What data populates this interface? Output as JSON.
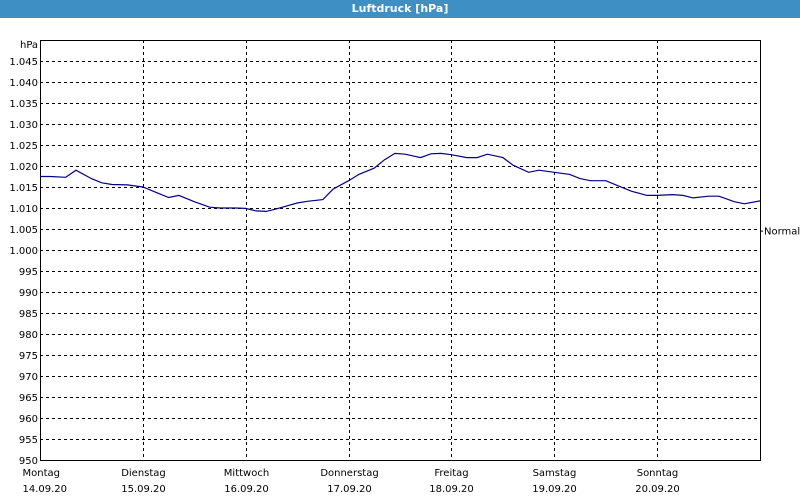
{
  "window": {
    "title": "Luftdruck [hPa]"
  },
  "colors": {
    "titlebar": "#3d8fc4",
    "line": "#00008b",
    "grid": "#000000"
  },
  "chart_data": {
    "type": "line",
    "title": "Luftdruck [hPa]",
    "ylabel": "hPa",
    "ylim": [
      950,
      1050
    ],
    "yticks": [
      {
        "v": 1045,
        "label": "1.045"
      },
      {
        "v": 1040,
        "label": "1.040"
      },
      {
        "v": 1035,
        "label": "1.035"
      },
      {
        "v": 1030,
        "label": "1.030"
      },
      {
        "v": 1025,
        "label": "1.025"
      },
      {
        "v": 1020,
        "label": "1.020"
      },
      {
        "v": 1015,
        "label": "1.015"
      },
      {
        "v": 1010,
        "label": "1.010"
      },
      {
        "v": 1005,
        "label": "1.005"
      },
      {
        "v": 1000,
        "label": "1.000"
      },
      {
        "v": 995,
        "label": "995"
      },
      {
        "v": 990,
        "label": "990"
      },
      {
        "v": 985,
        "label": "985"
      },
      {
        "v": 980,
        "label": "980"
      },
      {
        "v": 975,
        "label": "975"
      },
      {
        "v": 970,
        "label": "970"
      },
      {
        "v": 965,
        "label": "965"
      },
      {
        "v": 960,
        "label": "960"
      },
      {
        "v": 955,
        "label": "955"
      },
      {
        "v": 950,
        "label": "950"
      }
    ],
    "xlim": [
      0,
      7
    ],
    "days": [
      {
        "x": 0,
        "day": "Montag",
        "date": "14.09.20"
      },
      {
        "x": 1,
        "day": "Dienstag",
        "date": "15.09.20"
      },
      {
        "x": 2,
        "day": "Mittwoch",
        "date": "16.09.20"
      },
      {
        "x": 3,
        "day": "Donnerstag",
        "date": "17.09.20"
      },
      {
        "x": 4,
        "day": "Freitag",
        "date": "18.09.20"
      },
      {
        "x": 5,
        "day": "Samstag",
        "date": "19.09.20"
      },
      {
        "x": 6,
        "day": "Sonntag",
        "date": "20.09.20"
      }
    ],
    "reference": {
      "label": "Normal",
      "value": 1004.5
    },
    "grid": true,
    "series": [
      {
        "x": [
          0,
          0.1,
          0.25,
          0.35,
          0.5,
          0.6,
          0.7,
          0.85,
          1.0,
          1.15,
          1.25,
          1.35,
          1.5,
          1.65,
          1.75,
          1.9,
          2.0,
          2.1,
          2.2,
          2.3,
          2.4,
          2.5,
          2.6,
          2.75,
          2.85,
          3.0,
          3.1,
          3.25,
          3.35,
          3.45,
          3.55,
          3.7,
          3.8,
          3.9,
          4.0,
          4.15,
          4.25,
          4.35,
          4.5,
          4.6,
          4.75,
          4.85,
          5.0,
          5.15,
          5.25,
          5.35,
          5.5,
          5.6,
          5.75,
          5.9,
          6.0,
          6.15,
          6.25,
          6.35,
          6.5,
          6.6,
          6.75,
          6.85,
          7.0
        ],
        "values": [
          1017.5,
          1017.5,
          1017.3,
          1019.0,
          1017.0,
          1016.0,
          1015.6,
          1015.5,
          1015.0,
          1013.5,
          1012.5,
          1013.0,
          1011.5,
          1010.2,
          1010.0,
          1010.0,
          1009.9,
          1009.3,
          1009.2,
          1009.8,
          1010.5,
          1011.2,
          1011.6,
          1012.0,
          1014.5,
          1016.5,
          1018.0,
          1019.5,
          1021.5,
          1023.0,
          1022.8,
          1022.0,
          1022.9,
          1023.0,
          1022.7,
          1022.0,
          1022.0,
          1022.8,
          1022.0,
          1020.2,
          1018.5,
          1019.0,
          1018.5,
          1018.0,
          1017.0,
          1016.5,
          1016.5,
          1015.5,
          1014.0,
          1013.0,
          1013.0,
          1013.2,
          1013.0,
          1012.4,
          1012.8,
          1012.8,
          1011.5,
          1011.0,
          1011.7
        ]
      }
    ]
  }
}
